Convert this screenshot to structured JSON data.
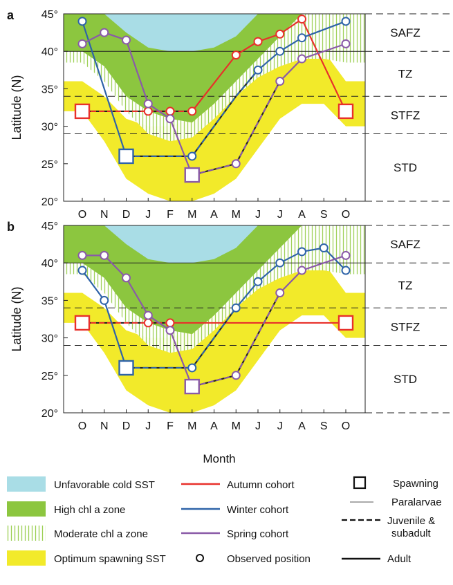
{
  "panels": [
    {
      "letter": "a"
    },
    {
      "letter": "b"
    }
  ],
  "months": [
    "O",
    "N",
    "D",
    "J",
    "F",
    "M",
    "A",
    "M",
    "J",
    "J",
    "A",
    "S",
    "O"
  ],
  "y_ticks": [
    "45°",
    "40°",
    "35°",
    "30°",
    "25°",
    "20°"
  ],
  "ylabel": "Latitude (N)",
  "xlabel": "Month",
  "zone_labels": [
    "SAFZ",
    "TZ",
    "STFZ",
    "STD"
  ],
  "legend": {
    "areas": [
      "Unfavorable cold SST",
      "High chl a zone",
      "Moderate chl a zone",
      "Optimum spawning SST"
    ],
    "cohorts": [
      "Autumn cohort",
      "Winter cohort",
      "Spring cohort",
      "Observed position"
    ],
    "stages": [
      "Spawning",
      "Paralarvae",
      "Juvenile &",
      "subadult",
      "Adult"
    ]
  },
  "colors": {
    "cold": "#a9dde6",
    "high_chl": "#8cc63f",
    "moderate_chl": "#8cc63f",
    "spawn_sst": "#f2ea2a",
    "autumn": "#e8302a",
    "winter": "#2e63a8",
    "spring": "#8a5aa8"
  },
  "chart_data": [
    {
      "panel": "a",
      "type": "line",
      "x": [
        "O",
        "N",
        "D",
        "J",
        "F",
        "M",
        "A",
        "M",
        "J",
        "J",
        "A",
        "S",
        "O"
      ],
      "ylabel": "Latitude (N)",
      "ylim": [
        20,
        45
      ],
      "boundaries": {
        "SAFZ_TZ": 40,
        "TZ_STFZ": 34,
        "STFZ_STD": 29
      },
      "zones": {
        "cold_sst_bottom": [
          45,
          45,
          42.5,
          40.5,
          40,
          40,
          40.5,
          42,
          45,
          45,
          45,
          45,
          45
        ],
        "high_chl": {
          "top": [
            45,
            45,
            45,
            45,
            45,
            45,
            45,
            45,
            45,
            45,
            45,
            45,
            45
          ],
          "bottom": [
            40,
            38,
            34,
            32,
            31,
            30.5,
            33,
            36,
            39,
            42,
            45,
            45,
            45
          ]
        },
        "moderate_chl_bottom": [
          38.5,
          36,
          32,
          29,
          28,
          28.5,
          31,
          34,
          36.5,
          38,
          39,
          39,
          38.5
        ],
        "spawn_sst": {
          "top": [
            36,
            34,
            31,
            30,
            30,
            31,
            33,
            35,
            37,
            38,
            39,
            40,
            36
          ],
          "bottom": [
            32,
            28,
            23,
            21,
            20,
            20,
            21,
            23,
            27,
            31,
            33,
            33,
            30
          ]
        }
      },
      "series": [
        {
          "name": "Autumn cohort",
          "points": [
            {
              "x": "O",
              "y": 32,
              "stage": "spawning"
            },
            {
              "x": "J",
              "y": 32
            },
            {
              "x": "F",
              "y": 32
            },
            {
              "x": "M",
              "y": 32
            },
            {
              "x": "M",
              "y": 39.5
            },
            {
              "x": "J",
              "y": 41.3
            },
            {
              "x": "J",
              "y": 42.3
            },
            {
              "x": "A",
              "y": 44.3
            },
            {
              "x": "O",
              "y": 32,
              "stage": "spawning"
            }
          ],
          "segments": [
            "juvenile",
            "adult"
          ]
        },
        {
          "name": "Winter cohort",
          "points": [
            {
              "x": "O",
              "y": 44
            },
            {
              "x": "D",
              "y": 26,
              "stage": "spawning"
            },
            {
              "x": "M",
              "y": 26
            },
            {
              "x": "M",
              "y": 34
            },
            {
              "x": "J",
              "y": 37.5
            },
            {
              "x": "J",
              "y": 40
            },
            {
              "x": "A",
              "y": 41.8
            },
            {
              "x": "O",
              "y": 44
            }
          ]
        },
        {
          "name": "Spring cohort",
          "points": [
            {
              "x": "O",
              "y": 41
            },
            {
              "x": "N",
              "y": 42.5
            },
            {
              "x": "D",
              "y": 41.5
            },
            {
              "x": "J",
              "y": 33
            },
            {
              "x": "F",
              "y": 31
            },
            {
              "x": "M",
              "y": 23.5,
              "stage": "spawning"
            },
            {
              "x": "M",
              "y": 25
            },
            {
              "x": "J",
              "y": 36
            },
            {
              "x": "A",
              "y": 39
            },
            {
              "x": "O",
              "y": 41
            }
          ]
        }
      ]
    },
    {
      "panel": "b",
      "type": "line",
      "x": [
        "O",
        "N",
        "D",
        "J",
        "F",
        "M",
        "A",
        "M",
        "J",
        "J",
        "A",
        "S",
        "O"
      ],
      "ylabel": "Latitude (N)",
      "ylim": [
        20,
        45
      ],
      "boundaries": {
        "SAFZ_TZ": 40,
        "TZ_STFZ": 34,
        "STFZ_STD": 29
      },
      "series": [
        {
          "name": "Autumn cohort",
          "points": [
            {
              "x": "O",
              "y": 32,
              "stage": "spawning"
            },
            {
              "x": "J",
              "y": 32
            },
            {
              "x": "F",
              "y": 32
            },
            {
              "x": "O",
              "y": 32,
              "stage": "spawning"
            }
          ]
        },
        {
          "name": "Winter cohort",
          "points": [
            {
              "x": "O",
              "y": 39
            },
            {
              "x": "N",
              "y": 35
            },
            {
              "x": "D",
              "y": 26,
              "stage": "spawning"
            },
            {
              "x": "M",
              "y": 26
            },
            {
              "x": "M",
              "y": 34
            },
            {
              "x": "J",
              "y": 37.5
            },
            {
              "x": "J",
              "y": 40
            },
            {
              "x": "A",
              "y": 41.5
            },
            {
              "x": "S",
              "y": 42
            },
            {
              "x": "O",
              "y": 39
            }
          ]
        },
        {
          "name": "Spring cohort",
          "points": [
            {
              "x": "O",
              "y": 41
            },
            {
              "x": "N",
              "y": 41
            },
            {
              "x": "D",
              "y": 38
            },
            {
              "x": "J",
              "y": 33
            },
            {
              "x": "F",
              "y": 31
            },
            {
              "x": "M",
              "y": 23.5,
              "stage": "spawning"
            },
            {
              "x": "M",
              "y": 25
            },
            {
              "x": "J",
              "y": 36
            },
            {
              "x": "A",
              "y": 39
            },
            {
              "x": "O",
              "y": 41
            }
          ]
        }
      ]
    }
  ]
}
